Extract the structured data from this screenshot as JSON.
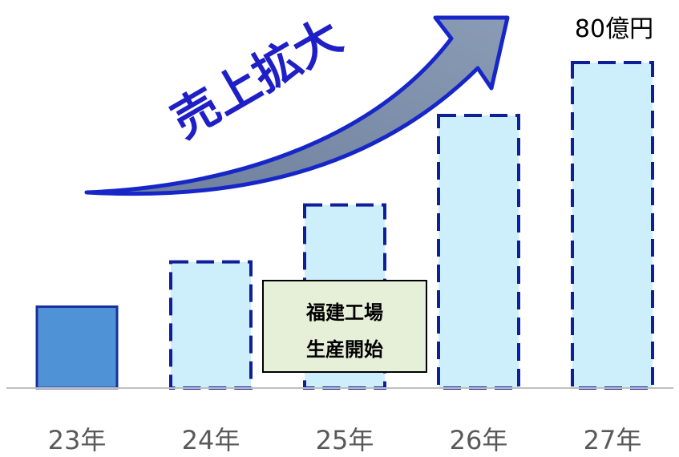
{
  "chart_data": {
    "type": "bar",
    "categories": [
      "23年",
      "24年",
      "25年",
      "26年",
      "27年"
    ],
    "values": [
      20,
      31,
      45,
      67,
      80
    ],
    "value_status": [
      "actual",
      "forecast",
      "forecast",
      "forecast",
      "forecast"
    ],
    "ylim": [
      0,
      80
    ],
    "grid": false,
    "legend": "none",
    "data_labels": {
      "27年": "80億円"
    },
    "annotations": {
      "arrow_text": "売上拡大",
      "callout_lines": [
        "福建工場",
        "生産開始"
      ]
    },
    "colors": {
      "actual_fill": "#4f93d6",
      "actual_stroke": "#1a2fa0",
      "forecast_fill": "#cdeefb",
      "forecast_stroke": "#0f1f9a",
      "arrow_fill": "#7b8eaa",
      "arrow_stroke": "#1626c8",
      "callout_fill": "#e6efd8",
      "axis": "#bfbfbf",
      "tick_text": "#595959"
    }
  }
}
